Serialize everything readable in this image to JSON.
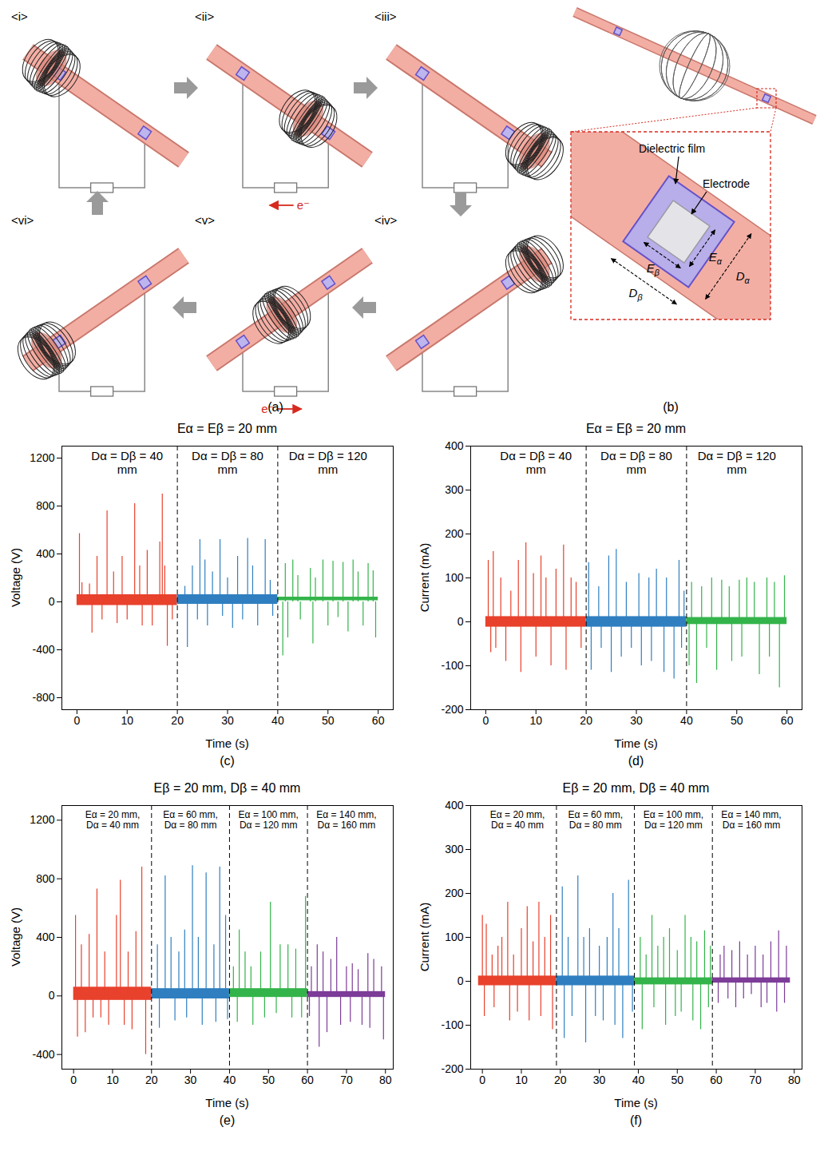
{
  "diagrams": {
    "a": {
      "label": "(a)",
      "states": [
        {
          "label": "<i>"
        },
        {
          "label": "<ii>",
          "electron_flow": {
            "text": "e⁻",
            "direction": "left"
          }
        },
        {
          "label": "<iii>"
        },
        {
          "label": "<iv>"
        },
        {
          "label": "<v>",
          "electron_flow": {
            "text": "e⁻",
            "direction": "right"
          }
        },
        {
          "label": "<vi>"
        }
      ]
    },
    "b": {
      "label": "(b)",
      "callouts": {
        "film": "Dielectric film",
        "electrode": "Electrode"
      },
      "dimensions": {
        "E_alpha": "Eα",
        "E_beta": "Eβ",
        "D_alpha": "Dα",
        "D_beta": "Dβ"
      }
    }
  },
  "chart_data": [
    {
      "type": "spike",
      "panel": "(c)",
      "title": "Eα = Eβ = 20 mm",
      "x_label": "Time (s)",
      "y_label": "Voltage (V)",
      "xlim": [
        -3,
        63
      ],
      "xticks": [
        0,
        10,
        20,
        30,
        40,
        50,
        60
      ],
      "ylim": [
        -900,
        1300
      ],
      "yticks": [
        -800,
        -400,
        0,
        400,
        800,
        1200
      ],
      "series": [
        {
          "name": "Dα = Dβ = 40 mm",
          "color": "#e8412c",
          "x_range": [
            0,
            20
          ],
          "band": [
            -30,
            60
          ],
          "x": [
            0.5,
            1,
            2.5,
            3,
            4,
            5,
            6,
            7.3,
            8,
            9,
            10,
            11.5,
            12.5,
            13,
            14,
            15,
            16.5,
            17,
            17.5,
            18,
            19
          ],
          "values": [
            570,
            160,
            150,
            -260,
            380,
            -150,
            760,
            250,
            -180,
            380,
            -150,
            820,
            300,
            -200,
            430,
            -200,
            500,
            900,
            300,
            -370,
            -150
          ]
        },
        {
          "name": "Dα = Dβ = 80 mm",
          "color": "#2f7fc0",
          "x_range": [
            20,
            40
          ],
          "band": [
            -20,
            60
          ],
          "x": [
            21.5,
            22,
            23,
            24,
            24.5,
            25.5,
            26,
            27,
            28.5,
            29,
            30,
            31,
            32,
            33,
            34,
            35,
            36,
            37.5,
            38.5,
            39
          ],
          "values": [
            130,
            -380,
            300,
            -150,
            520,
            350,
            -200,
            250,
            520,
            -120,
            200,
            -220,
            380,
            -150,
            530,
            300,
            -200,
            520,
            180,
            -120
          ]
        },
        {
          "name": "Dα = Dβ = 120 mm",
          "color": "#33b44a",
          "x_range": [
            40,
            60
          ],
          "band": [
            10,
            40
          ],
          "x": [
            41,
            41.5,
            42,
            43,
            44,
            44.5,
            46.5,
            47,
            47.5,
            49,
            50,
            51,
            52,
            53,
            54,
            55,
            56,
            57,
            58,
            59,
            59.5
          ],
          "values": [
            -450,
            320,
            -300,
            350,
            220,
            -150,
            280,
            -350,
            200,
            350,
            -200,
            340,
            -130,
            330,
            -250,
            350,
            250,
            -200,
            320,
            260,
            -300
          ]
        }
      ]
    },
    {
      "type": "spike",
      "panel": "(d)",
      "title": "Eα = Eβ = 20 mm",
      "x_label": "Time (s)",
      "y_label": "Current (mA)",
      "xlim": [
        -3,
        63
      ],
      "xticks": [
        0,
        10,
        20,
        30,
        40,
        50,
        60
      ],
      "ylim": [
        -200,
        400
      ],
      "yticks": [
        -200,
        -100,
        0,
        100,
        200,
        300,
        400
      ],
      "series": [
        {
          "name": "Dα = Dβ = 40 mm",
          "color": "#e8412c",
          "x_range": [
            0,
            20
          ],
          "band": [
            -12,
            12
          ],
          "x": [
            0.5,
            1,
            1.5,
            2,
            3,
            4,
            5,
            6.5,
            7,
            8,
            9.5,
            10,
            11,
            12,
            13,
            14,
            15.5,
            16,
            17,
            18,
            19
          ],
          "values": [
            140,
            -70,
            160,
            -60,
            100,
            -90,
            70,
            140,
            -115,
            180,
            110,
            -80,
            150,
            100,
            -100,
            120,
            175,
            -110,
            100,
            90,
            -60
          ]
        },
        {
          "name": "Dα = Dβ = 80 mm",
          "color": "#2f7fc0",
          "x_range": [
            20,
            40
          ],
          "band": [
            -12,
            12
          ],
          "x": [
            20.5,
            21,
            22.5,
            23,
            24.5,
            25,
            26,
            27,
            28,
            29,
            30.5,
            31,
            32.5,
            33,
            34,
            35.5,
            36,
            37.5,
            38.5,
            39,
            39.5
          ],
          "values": [
            135,
            -110,
            80,
            -60,
            150,
            -115,
            165,
            -80,
            90,
            -60,
            110,
            -100,
            100,
            -90,
            120,
            -115,
            100,
            -130,
            140,
            -60,
            70
          ]
        },
        {
          "name": "Dα = Dβ = 120 mm",
          "color": "#33b44a",
          "x_range": [
            40,
            60
          ],
          "band": [
            -6,
            10
          ],
          "x": [
            40.5,
            41,
            42,
            43,
            44,
            45,
            46,
            47,
            48.5,
            49,
            50.5,
            51,
            52,
            53.5,
            54.5,
            56,
            56.5,
            57.5,
            58.5,
            59.5
          ],
          "values": [
            -100,
            90,
            -140,
            80,
            -60,
            100,
            -110,
            95,
            80,
            -90,
            95,
            -80,
            100,
            90,
            -120,
            100,
            -80,
            90,
            -150,
            105
          ]
        }
      ]
    },
    {
      "type": "spike",
      "panel": "(e)",
      "title": "Eβ = 20 mm, Dβ = 40 mm",
      "x_label": "Time (s)",
      "y_label": "Voltage (V)",
      "xlim": [
        -3,
        82
      ],
      "xticks": [
        0,
        10,
        20,
        30,
        40,
        50,
        60,
        70,
        80
      ],
      "ylim": [
        -500,
        1300
      ],
      "yticks": [
        -400,
        0,
        400,
        800,
        1200
      ],
      "series": [
        {
          "name": "Eα = 20 mm, Dα = 40 mm",
          "color": "#e8412c",
          "x_range": [
            0,
            20
          ],
          "band": [
            -30,
            60
          ],
          "x": [
            0.5,
            1,
            2,
            3,
            4,
            5,
            6,
            7,
            8,
            9,
            11,
            12,
            13,
            14,
            15,
            16,
            17.5,
            18.5
          ],
          "values": [
            550,
            -280,
            350,
            -250,
            420,
            -150,
            730,
            -150,
            300,
            -200,
            550,
            790,
            -200,
            300,
            -230,
            440,
            880,
            -400
          ]
        },
        {
          "name": "Eα = 60 mm, Dα = 80 mm",
          "color": "#2f7fc0",
          "x_range": [
            20,
            40
          ],
          "band": [
            -20,
            50
          ],
          "x": [
            21.5,
            22,
            23.5,
            25,
            26,
            27,
            28.5,
            29,
            30.5,
            32,
            33,
            34,
            36,
            36.5,
            37.5,
            39,
            39.5
          ],
          "values": [
            350,
            -220,
            820,
            400,
            -170,
            300,
            450,
            -150,
            890,
            400,
            -200,
            840,
            350,
            -180,
            880,
            550,
            -160
          ]
        },
        {
          "name": "Eα = 100 mm, Dα = 120 mm",
          "color": "#33b44a",
          "x_range": [
            40,
            60
          ],
          "band": [
            -10,
            50
          ],
          "x": [
            41,
            42,
            42.5,
            44,
            45.5,
            46,
            48,
            49,
            50.5,
            52,
            53,
            55,
            56,
            57,
            58.5,
            59.5
          ],
          "values": [
            200,
            -180,
            450,
            300,
            200,
            -200,
            300,
            -150,
            640,
            -120,
            350,
            350,
            -150,
            320,
            -150,
            680
          ]
        },
        {
          "name": "Eα = 140 mm, Dα = 160 mm",
          "color": "#7d3c98",
          "x_range": [
            60,
            80
          ],
          "band": [
            -10,
            30
          ],
          "x": [
            60.5,
            61,
            62.5,
            63,
            64,
            65,
            66,
            67.5,
            68.5,
            70,
            71,
            71.5,
            73,
            74,
            75.5,
            76,
            77,
            79,
            79.5
          ],
          "values": [
            -140,
            200,
            350,
            -350,
            300,
            -250,
            250,
            400,
            -200,
            200,
            -180,
            220,
            180,
            -200,
            290,
            -220,
            250,
            200,
            -300
          ]
        }
      ]
    },
    {
      "type": "spike",
      "panel": "(f)",
      "title": "Eβ = 20 mm, Dβ = 40 mm",
      "x_label": "Time (s)",
      "y_label": "Current (mA)",
      "xlim": [
        -3,
        82
      ],
      "xticks": [
        0,
        10,
        20,
        30,
        40,
        50,
        60,
        70,
        80
      ],
      "ylim": [
        -200,
        400
      ],
      "yticks": [
        -200,
        -100,
        0,
        100,
        200,
        300,
        400
      ],
      "series": [
        {
          "name": "Eα = 20 mm, Dα = 40 mm",
          "color": "#e8412c",
          "x_range": [
            -1,
            19
          ],
          "band": [
            -10,
            12
          ],
          "x": [
            0,
            0.5,
            1,
            2.5,
            3,
            4,
            5,
            6.5,
            7,
            8,
            9,
            10,
            11.5,
            12,
            13,
            14.5,
            15,
            16,
            17.5,
            18
          ],
          "values": [
            150,
            -80,
            130,
            60,
            -60,
            80,
            100,
            180,
            -90,
            60,
            -70,
            120,
            170,
            -90,
            90,
            180,
            -80,
            100,
            150,
            -110
          ]
        },
        {
          "name": "Eα = 60 mm, Dα = 80 mm",
          "color": "#2f7fc0",
          "x_range": [
            19,
            39
          ],
          "band": [
            -10,
            12
          ],
          "x": [
            20.5,
            21,
            22,
            23,
            24.5,
            26,
            26.5,
            27.5,
            29,
            30,
            31,
            32,
            33.5,
            34,
            35,
            36,
            37.5,
            38.5
          ],
          "values": [
            215,
            -130,
            100,
            -80,
            240,
            100,
            -140,
            120,
            -80,
            80,
            -90,
            100,
            200,
            -100,
            120,
            -130,
            230,
            -70
          ]
        },
        {
          "name": "Eα = 100 mm, Dα = 120 mm",
          "color": "#33b44a",
          "x_range": [
            39,
            59
          ],
          "band": [
            -8,
            8
          ],
          "x": [
            40.5,
            41,
            42,
            43.5,
            44,
            45,
            46.5,
            47,
            48,
            49.5,
            50,
            51,
            52,
            53.5,
            54,
            55,
            56,
            57,
            58,
            58.5
          ],
          "values": [
            100,
            -110,
            60,
            150,
            -60,
            80,
            100,
            -100,
            120,
            -80,
            70,
            -70,
            150,
            100,
            -90,
            90,
            -110,
            115,
            -60,
            80
          ]
        },
        {
          "name": "Eα = 140 mm, Dα = 160 mm",
          "color": "#7d3c98",
          "x_range": [
            59,
            79
          ],
          "band": [
            -4,
            8
          ],
          "x": [
            60.5,
            61,
            62,
            63,
            64,
            65,
            66,
            67,
            68,
            69,
            70,
            71.5,
            72,
            73,
            74,
            75.5,
            76,
            77.5,
            78
          ],
          "values": [
            -50,
            60,
            80,
            -40,
            70,
            -60,
            90,
            -40,
            60,
            -30,
            80,
            -60,
            60,
            -50,
            90,
            -70,
            115,
            -50,
            80
          ]
        }
      ]
    }
  ]
}
